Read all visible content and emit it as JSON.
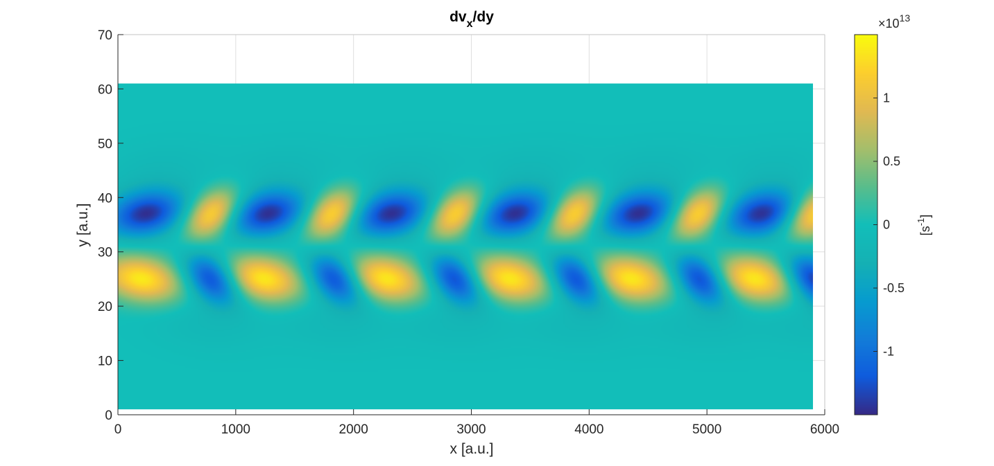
{
  "chart_data": {
    "type": "heatmap",
    "title": {
      "base": "dv",
      "sub": "x",
      "suffix": "/dy"
    },
    "xlabel": "x [a.u.]",
    "ylabel": "y [a.u.]",
    "xlim": [
      0,
      6000
    ],
    "ylim": [
      0,
      70
    ],
    "xticks": [
      0,
      1000,
      2000,
      3000,
      4000,
      5000,
      6000
    ],
    "yticks": [
      0,
      10,
      20,
      30,
      40,
      50,
      60,
      70
    ],
    "grid": true,
    "data_extent": {
      "x": [
        0,
        5900
      ],
      "y": [
        1,
        61
      ]
    },
    "colormap": "parula",
    "colorbar": {
      "label": {
        "base": "[s",
        "sup": "-1",
        "suffix": "]"
      },
      "exponent_label": {
        "base": "×10",
        "sup": "13"
      },
      "range": [
        -1.5,
        1.5
      ],
      "ticks": [
        -1,
        -0.5,
        0,
        0.5,
        1
      ],
      "tick_labels": [
        "-1",
        "-0.5",
        "0",
        "0.5",
        "1"
      ]
    },
    "pattern": {
      "description_values": "alternating positive/negative shear lobes in two rows",
      "upper_row_center_y": 37,
      "lower_row_center_y": 25,
      "upper_row_positive_x": [
        800,
        1820,
        2870,
        3870,
        4920,
        5900
      ],
      "upper_row_negative_x": [
        240,
        1270,
        2320,
        3370,
        4420,
        5470
      ],
      "lower_row_positive_x": [
        200,
        1230,
        2270,
        3320,
        4350,
        5400
      ],
      "lower_row_negative_x": [
        800,
        1850,
        2870,
        3900,
        4950,
        5900
      ],
      "peak_value": 1.4,
      "min_value": -1.45
    }
  }
}
